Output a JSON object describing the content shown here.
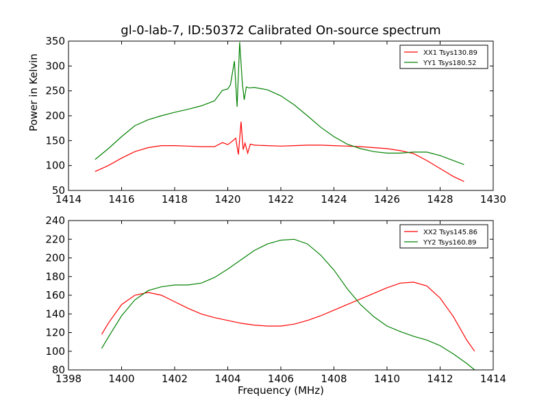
{
  "figure": {
    "title": "gl-0-lab-7, ID:50372 Calibrated On-source spectrum",
    "ylabel": "Power in Kelvin",
    "xlabel": "Frequency (MHz)"
  },
  "chart_data": [
    {
      "type": "line",
      "xlim": [
        1414,
        1430
      ],
      "ylim": [
        50,
        350
      ],
      "xticks": [
        "1414",
        "1416",
        "1418",
        "1420",
        "1422",
        "1424",
        "1426",
        "1428",
        "1430"
      ],
      "yticks": [
        "50",
        "100",
        "150",
        "200",
        "250",
        "300",
        "350"
      ],
      "legend_position": "top-right",
      "grid": false,
      "series": [
        {
          "name": "XX1 Tsys130.89",
          "color": "#ff0000",
          "points": [
            [
              1415.0,
              88
            ],
            [
              1415.5,
              100
            ],
            [
              1416.0,
              115
            ],
            [
              1416.5,
              128
            ],
            [
              1417.0,
              136
            ],
            [
              1417.5,
              140
            ],
            [
              1418.0,
              140
            ],
            [
              1418.5,
              139
            ],
            [
              1419.0,
              138
            ],
            [
              1419.5,
              138
            ],
            [
              1419.8,
              146
            ],
            [
              1420.0,
              142
            ],
            [
              1420.15,
              148
            ],
            [
              1420.3,
              155
            ],
            [
              1420.4,
              122
            ],
            [
              1420.5,
              188
            ],
            [
              1420.58,
              132
            ],
            [
              1420.65,
              145
            ],
            [
              1420.75,
              125
            ],
            [
              1420.85,
              143
            ],
            [
              1421.0,
              141
            ],
            [
              1421.5,
              140
            ],
            [
              1422.0,
              139
            ],
            [
              1422.5,
              140
            ],
            [
              1423.0,
              141
            ],
            [
              1423.5,
              141
            ],
            [
              1424.0,
              140
            ],
            [
              1424.5,
              139
            ],
            [
              1425.0,
              138
            ],
            [
              1425.5,
              136
            ],
            [
              1426.0,
              134
            ],
            [
              1426.5,
              130
            ],
            [
              1427.0,
              124
            ],
            [
              1427.5,
              110
            ],
            [
              1428.0,
              94
            ],
            [
              1428.5,
              78
            ],
            [
              1428.9,
              68
            ]
          ]
        },
        {
          "name": "YY1 Tsys180.52",
          "color": "#008000",
          "points": [
            [
              1415.0,
              112
            ],
            [
              1415.5,
              134
            ],
            [
              1416.0,
              158
            ],
            [
              1416.5,
              180
            ],
            [
              1417.0,
              192
            ],
            [
              1417.5,
              200
            ],
            [
              1418.0,
              207
            ],
            [
              1418.5,
              213
            ],
            [
              1419.0,
              220
            ],
            [
              1419.5,
              230
            ],
            [
              1419.8,
              251
            ],
            [
              1420.0,
              254
            ],
            [
              1420.1,
              262
            ],
            [
              1420.25,
              310
            ],
            [
              1420.35,
              218
            ],
            [
              1420.45,
              348
            ],
            [
              1420.55,
              265
            ],
            [
              1420.62,
              232
            ],
            [
              1420.7,
              258
            ],
            [
              1420.8,
              256
            ],
            [
              1421.0,
              257
            ],
            [
              1421.5,
              252
            ],
            [
              1422.0,
              240
            ],
            [
              1422.5,
              222
            ],
            [
              1423.0,
              200
            ],
            [
              1423.5,
              177
            ],
            [
              1424.0,
              158
            ],
            [
              1424.5,
              143
            ],
            [
              1425.0,
              134
            ],
            [
              1425.5,
              128
            ],
            [
              1426.0,
              125
            ],
            [
              1426.5,
              125
            ],
            [
              1427.0,
              127
            ],
            [
              1427.5,
              127
            ],
            [
              1428.0,
              120
            ],
            [
              1428.5,
              110
            ],
            [
              1428.9,
              102
            ]
          ]
        }
      ]
    },
    {
      "type": "line",
      "xlim": [
        1398,
        1414
      ],
      "ylim": [
        80,
        240
      ],
      "xticks": [
        "1398",
        "1400",
        "1402",
        "1404",
        "1406",
        "1408",
        "1410",
        "1412",
        "1414"
      ],
      "yticks": [
        "80",
        "100",
        "120",
        "140",
        "160",
        "180",
        "200",
        "220",
        "240"
      ],
      "legend_position": "top-right",
      "grid": false,
      "series": [
        {
          "name": "XX2 Tsys145.86",
          "color": "#ff0000",
          "points": [
            [
              1399.25,
              118
            ],
            [
              1399.5,
              130
            ],
            [
              1400.0,
              150
            ],
            [
              1400.5,
              160
            ],
            [
              1401.0,
              163
            ],
            [
              1401.5,
              160
            ],
            [
              1402.0,
              153
            ],
            [
              1402.5,
              146
            ],
            [
              1403.0,
              140
            ],
            [
              1403.5,
              136
            ],
            [
              1404.0,
              133
            ],
            [
              1404.5,
              130
            ],
            [
              1405.0,
              128
            ],
            [
              1405.5,
              127
            ],
            [
              1406.0,
              127
            ],
            [
              1406.5,
              129
            ],
            [
              1407.0,
              133
            ],
            [
              1407.5,
              138
            ],
            [
              1408.0,
              144
            ],
            [
              1408.5,
              150
            ],
            [
              1409.0,
              156
            ],
            [
              1409.5,
              162
            ],
            [
              1410.0,
              168
            ],
            [
              1410.5,
              173
            ],
            [
              1411.0,
              174
            ],
            [
              1411.5,
              170
            ],
            [
              1412.0,
              157
            ],
            [
              1412.5,
              137
            ],
            [
              1413.0,
              112
            ],
            [
              1413.3,
              100
            ]
          ]
        },
        {
          "name": "YY2 Tsys160.89",
          "color": "#008000",
          "points": [
            [
              1399.25,
              103
            ],
            [
              1399.5,
              115
            ],
            [
              1400.0,
              138
            ],
            [
              1400.5,
              155
            ],
            [
              1401.0,
              165
            ],
            [
              1401.5,
              169
            ],
            [
              1402.0,
              171
            ],
            [
              1402.5,
              171
            ],
            [
              1403.0,
              173
            ],
            [
              1403.5,
              179
            ],
            [
              1404.0,
              188
            ],
            [
              1404.5,
              198
            ],
            [
              1405.0,
              208
            ],
            [
              1405.5,
              215
            ],
            [
              1406.0,
              219
            ],
            [
              1406.5,
              220
            ],
            [
              1407.0,
              215
            ],
            [
              1407.5,
              203
            ],
            [
              1408.0,
              187
            ],
            [
              1408.5,
              167
            ],
            [
              1409.0,
              150
            ],
            [
              1409.5,
              137
            ],
            [
              1410.0,
              127
            ],
            [
              1410.5,
              121
            ],
            [
              1411.0,
              116
            ],
            [
              1411.5,
              112
            ],
            [
              1412.0,
              106
            ],
            [
              1412.5,
              97
            ],
            [
              1413.0,
              87
            ],
            [
              1413.3,
              80
            ]
          ]
        }
      ]
    }
  ]
}
